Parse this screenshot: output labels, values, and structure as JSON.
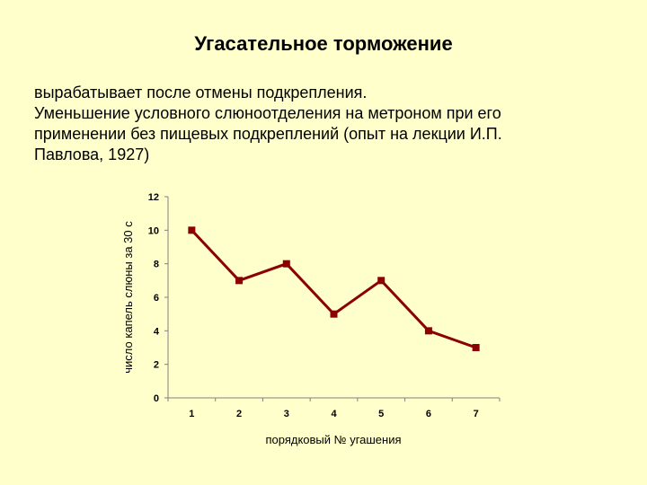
{
  "slide": {
    "title": "Угасательное торможение",
    "lines": [
      "вырабатывает после отмены подкрепления.",
      "Уменьшение условного слюноотделения на метроном при его",
      "применении без пищевых подкреплений (опыт на лекции И.П.",
      "Павлова, 1927)"
    ]
  },
  "chart_data": {
    "type": "line",
    "categories": [
      "1",
      "2",
      "3",
      "4",
      "5",
      "6",
      "7"
    ],
    "series": [
      {
        "name": "",
        "values": [
          10,
          7,
          8,
          5,
          7,
          4,
          3
        ],
        "color": "#8b0000"
      }
    ],
    "xlabel": "порядковый № угашения",
    "ylabel": "число капель слюны за 30 с",
    "ylim": [
      0,
      12
    ],
    "yticks": [
      "0",
      "2",
      "4",
      "6",
      "8",
      "10",
      "12"
    ],
    "grid": false,
    "legend": "none"
  }
}
